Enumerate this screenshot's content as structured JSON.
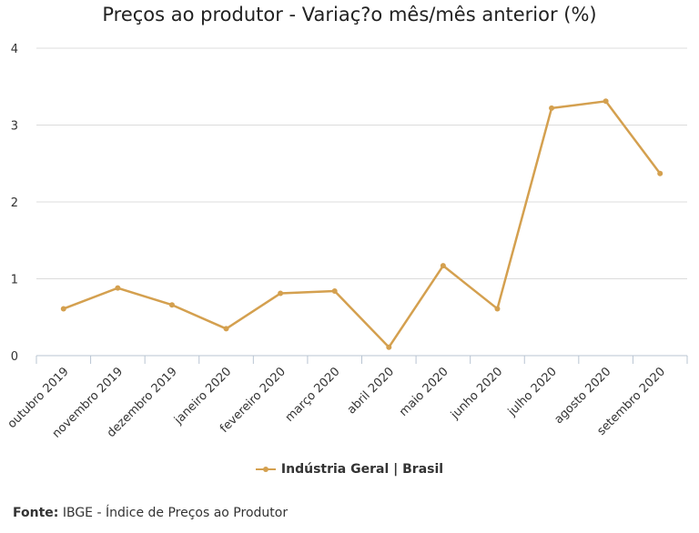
{
  "chart_data": {
    "type": "line",
    "title": "Preços ao produtor - Variaç?o mês/mês anterior (%)",
    "categories": [
      "outubro 2019",
      "novembro 2019",
      "dezembro 2019",
      "janeiro 2020",
      "fevereiro 2020",
      "março 2020",
      "abril 2020",
      "maio 2020",
      "junho 2020",
      "julho 2020",
      "agosto 2020",
      "setembro 2020"
    ],
    "series": [
      {
        "name": "Indústria Geral | Brasil",
        "values": [
          0.61,
          0.88,
          0.66,
          0.35,
          0.81,
          0.84,
          0.11,
          1.17,
          0.61,
          3.22,
          3.31,
          2.37
        ],
        "color": "#d4a04f"
      }
    ],
    "ylim": [
      0,
      4
    ],
    "yticks": [
      "0",
      "1",
      "2",
      "3",
      "4"
    ],
    "grid": true,
    "legend_position": "bottom"
  },
  "source": {
    "label": "Fonte:",
    "text": "IBGE - Índice de Preços ao Produtor"
  }
}
